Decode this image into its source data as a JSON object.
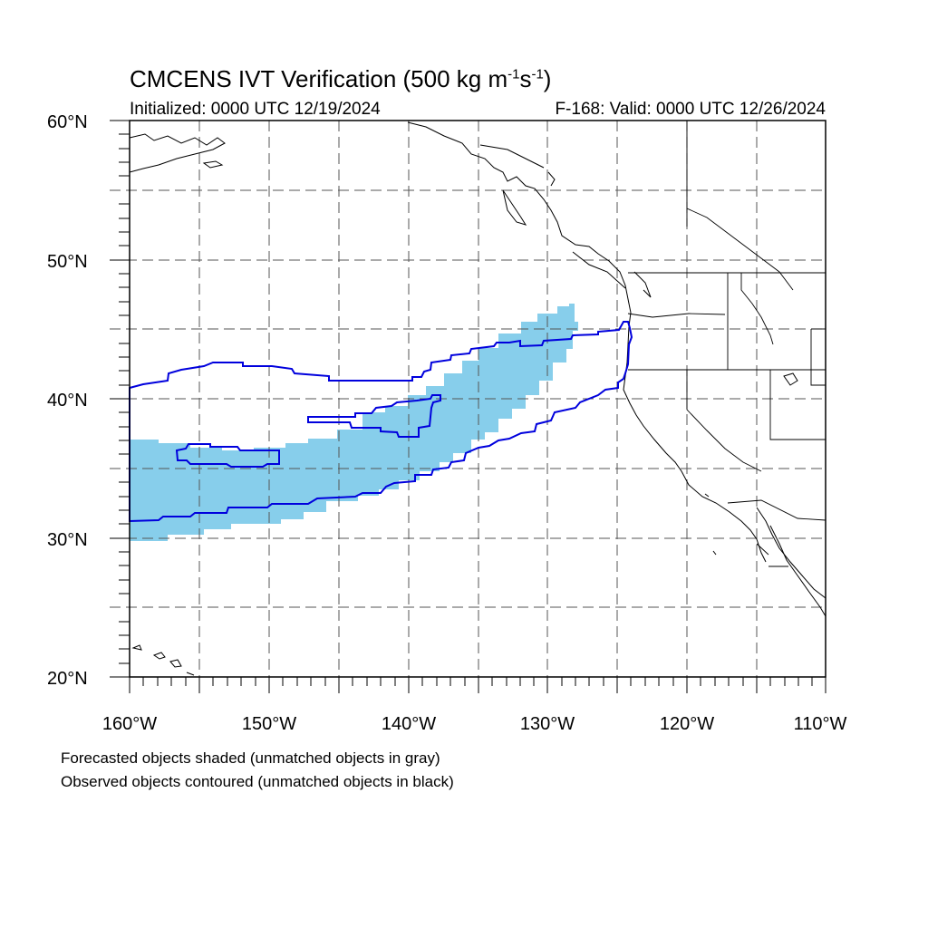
{
  "title": {
    "main": "CMCENS IVT Verification (500 kg m",
    "exp1": "-1",
    "mid": "s",
    "exp2": "-1",
    "end": ")"
  },
  "subtitle_left": "Initialized: 0000 UTC 12/19/2024",
  "subtitle_right": "F-168: Valid: 0000 UTC 12/26/2024",
  "captions": [
    "Forecasted objects shaded (unmatched objects in gray)",
    "Observed objects contoured (unmatched objects in black)"
  ],
  "map": {
    "lon_range": [
      -160,
      -110
    ],
    "lat_range": [
      20,
      60
    ],
    "lon_labels": [
      {
        "lon": -160,
        "text": "160°W"
      },
      {
        "lon": -150,
        "text": "150°W"
      },
      {
        "lon": -140,
        "text": "140°W"
      },
      {
        "lon": -130,
        "text": "130°W"
      },
      {
        "lon": -120,
        "text": "120°W"
      },
      {
        "lon": -110,
        "text": "110°W"
      }
    ],
    "lat_labels": [
      {
        "lat": 60,
        "text": "60°N"
      },
      {
        "lat": 50,
        "text": "50°N"
      },
      {
        "lat": 40,
        "text": "40°N"
      },
      {
        "lat": 30,
        "text": "30°N"
      },
      {
        "lat": 20,
        "text": "20°N"
      }
    ],
    "grid_dashed": true,
    "colors": {
      "forecast_fill": "#87ceeb",
      "observed_contour": "#0000dd",
      "coastline": "#000000",
      "grid": "#555555"
    }
  }
}
